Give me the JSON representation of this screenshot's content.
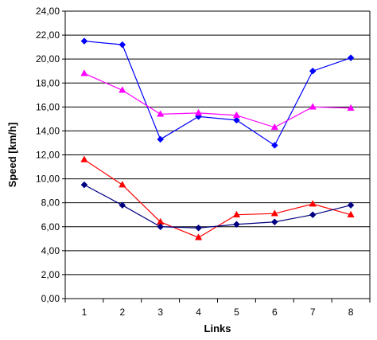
{
  "chart_data": {
    "type": "line",
    "title": "",
    "xlabel": "Links",
    "ylabel": "Speed [km/h]",
    "categories": [
      "1",
      "2",
      "3",
      "4",
      "5",
      "6",
      "7",
      "8"
    ],
    "ylim": [
      0,
      24
    ],
    "ytick_step": 2,
    "ytick_labels": [
      "0,00",
      "2,00",
      "4,00",
      "6,00",
      "8,00",
      "10,00",
      "12,00",
      "14,00",
      "16,00",
      "18,00",
      "20,00",
      "22,00",
      "24,00"
    ],
    "grid": "horizontal",
    "legend": "none",
    "series": [
      {
        "values": [
          21.5,
          21.2,
          13.3,
          15.2,
          14.9,
          12.8,
          19.0,
          20.1
        ],
        "color": "#0000ff",
        "marker": "diamond"
      },
      {
        "values": [
          18.8,
          17.4,
          15.4,
          15.5,
          15.3,
          14.3,
          16.0,
          15.9
        ],
        "color": "#ff00ff",
        "marker": "triangle"
      },
      {
        "values": [
          11.6,
          9.5,
          6.4,
          5.1,
          7.0,
          7.1,
          7.9,
          7.0
        ],
        "color": "#ff0000",
        "marker": "triangle"
      },
      {
        "values": [
          9.5,
          7.8,
          6.0,
          5.9,
          6.2,
          6.4,
          7.0,
          7.8
        ],
        "color": "#000080",
        "marker": "diamond"
      }
    ]
  }
}
